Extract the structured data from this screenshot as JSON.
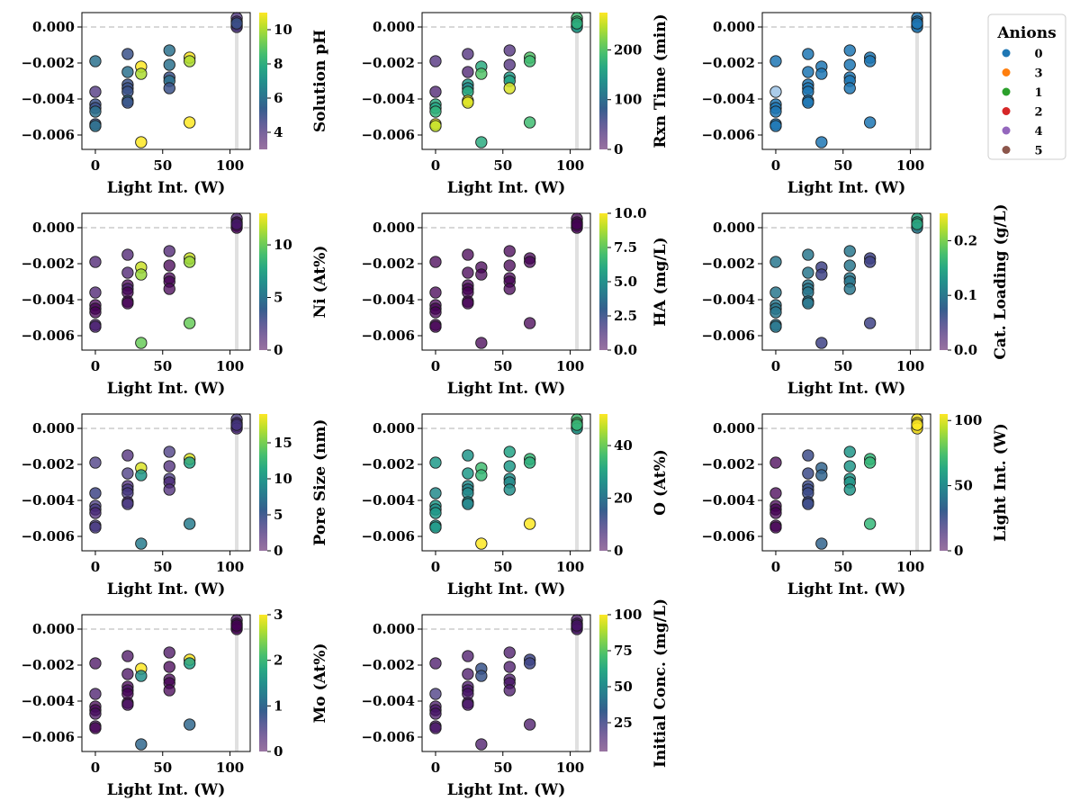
{
  "chart_data": {
    "type": "scatter",
    "grid": false,
    "shared_x": {
      "label": "Light Int. (W)",
      "lim": [
        -10,
        115
      ],
      "ticks": [
        0,
        50,
        100
      ]
    },
    "shared_y": {
      "lim": [
        -0.0068,
        0.0008
      ],
      "ticks": [
        0.0,
        -0.002,
        -0.004,
        -0.006
      ],
      "tick_labels": [
        "0.000",
        "−0.002",
        "−0.004",
        "−0.006"
      ],
      "reference_line": 0.0
    },
    "points": [
      {
        "x": 0,
        "y": -0.0019
      },
      {
        "x": 0,
        "y": -0.0036
      },
      {
        "x": 0,
        "y": -0.0043
      },
      {
        "x": 0,
        "y": -0.0045
      },
      {
        "x": 0,
        "y": -0.0047
      },
      {
        "x": 0,
        "y": -0.0054
      },
      {
        "x": 0,
        "y": -0.0055
      },
      {
        "x": 24,
        "y": -0.0015
      },
      {
        "x": 24,
        "y": -0.0025
      },
      {
        "x": 24,
        "y": -0.0032
      },
      {
        "x": 24,
        "y": -0.0034
      },
      {
        "x": 24,
        "y": -0.0036
      },
      {
        "x": 24,
        "y": -0.0041
      },
      {
        "x": 24,
        "y": -0.0042
      },
      {
        "x": 34,
        "y": -0.0022
      },
      {
        "x": 34,
        "y": -0.0026
      },
      {
        "x": 34,
        "y": -0.0064
      },
      {
        "x": 55,
        "y": -0.0013
      },
      {
        "x": 55,
        "y": -0.0021
      },
      {
        "x": 55,
        "y": -0.0028
      },
      {
        "x": 55,
        "y": -0.003
      },
      {
        "x": 55,
        "y": -0.0034
      },
      {
        "x": 70,
        "y": -0.0017
      },
      {
        "x": 70,
        "y": -0.0019
      },
      {
        "x": 70,
        "y": -0.0053
      },
      {
        "x": 105,
        "y": 0.0005
      },
      {
        "x": 105,
        "y": 0.0003
      },
      {
        "x": 105,
        "y": 0.0001
      },
      {
        "x": 105,
        "y": 0.0
      },
      {
        "x": 105,
        "y": 0.0002
      }
    ],
    "panels": [
      {
        "colorbar_label": "Solution pH",
        "clim": [
          3,
          11
        ],
        "cticks": [
          4,
          6,
          8,
          10
        ],
        "ctick_labels": [
          "4",
          "6",
          "8",
          "10"
        ],
        "colors": [
          6,
          4,
          5,
          5,
          6,
          5,
          6,
          5,
          6,
          5,
          5,
          5,
          6,
          5,
          11,
          10,
          11,
          6,
          6,
          5,
          6,
          5,
          11,
          10,
          11,
          4,
          4,
          5,
          4,
          5
        ]
      },
      {
        "colorbar_label": "Rxn Time (min)",
        "clim": [
          0,
          275
        ],
        "cticks": [
          0,
          100,
          200
        ],
        "ctick_labels": [
          "0",
          "100",
          "200"
        ],
        "colors": [
          30,
          20,
          170,
          160,
          180,
          275,
          250,
          30,
          20,
          150,
          130,
          170,
          270,
          260,
          170,
          200,
          170,
          30,
          30,
          150,
          160,
          260,
          200,
          190,
          190,
          190,
          190,
          160,
          150,
          175
        ]
      },
      {
        "colorbar_label": "",
        "categorical": true,
        "colors": [
          0,
          0,
          0,
          0,
          0,
          0,
          0,
          0,
          0,
          0,
          0,
          0,
          0,
          0,
          0,
          0,
          0,
          0,
          0,
          0,
          0,
          0,
          0,
          0,
          0,
          0,
          0,
          0,
          0,
          0
        ]
      },
      {
        "colorbar_label": "Ni (At%)",
        "clim": [
          0,
          13
        ],
        "cticks": [
          0,
          5,
          10
        ],
        "ctick_labels": [
          "0",
          "5",
          "10"
        ],
        "colors": [
          1,
          1,
          0,
          0,
          0,
          1,
          1,
          1,
          1,
          0,
          1,
          0,
          0,
          0,
          12,
          11,
          10,
          1,
          0,
          0,
          0,
          0,
          12,
          11,
          10,
          1,
          0,
          0,
          0,
          1
        ]
      },
      {
        "colorbar_label": "HA (mg/L)",
        "clim": [
          0,
          10
        ],
        "cticks": [
          0,
          2.5,
          5,
          7.5,
          10
        ],
        "ctick_labels": [
          "0.0",
          "2.5",
          "5.0",
          "7.5",
          "10.0"
        ],
        "colors": [
          0,
          0,
          0,
          0,
          0,
          0,
          0,
          0,
          0,
          0,
          0,
          0,
          0,
          0,
          0,
          0,
          0,
          0,
          0,
          0,
          0,
          0,
          0,
          0,
          0,
          0,
          0,
          0,
          0,
          0
        ]
      },
      {
        "colorbar_label": "Cat. Loading (g/L)",
        "clim": [
          0,
          0.25
        ],
        "cticks": [
          0,
          0.1,
          0.2
        ],
        "ctick_labels": [
          "0.0",
          "0.1",
          "0.2"
        ],
        "colors": [
          0.1,
          0.1,
          0.1,
          0.1,
          0.1,
          0.1,
          0.1,
          0.1,
          0.1,
          0.1,
          0.1,
          0.1,
          0.1,
          0.1,
          0.05,
          0.05,
          0.05,
          0.1,
          0.1,
          0.1,
          0.1,
          0.1,
          0.05,
          0.05,
          0.05,
          0.15,
          0.15,
          0.2,
          0.1,
          0.15
        ]
      },
      {
        "colorbar_label": "Pore Size (nm)",
        "clim": [
          0,
          19
        ],
        "cticks": [
          0,
          5,
          10,
          15
        ],
        "ctick_labels": [
          "0",
          "5",
          "10",
          "15"
        ],
        "colors": [
          3,
          4,
          3,
          3,
          2,
          3,
          3,
          2,
          3,
          2,
          3,
          3,
          2,
          3,
          18,
          10,
          8,
          3,
          2,
          3,
          2,
          2,
          18,
          11,
          8,
          3,
          2,
          3,
          2,
          3
        ]
      },
      {
        "colorbar_label": "O (At%)",
        "clim": [
          0,
          52
        ],
        "cticks": [
          0,
          20,
          40
        ],
        "ctick_labels": [
          "0",
          "20",
          "40"
        ],
        "colors": [
          28,
          25,
          28,
          26,
          28,
          27,
          28,
          27,
          28,
          25,
          24,
          25,
          26,
          24,
          36,
          35,
          52,
          30,
          28,
          26,
          25,
          26,
          35,
          33,
          52,
          36,
          38,
          40,
          27,
          35
        ]
      },
      {
        "colorbar_label": "Light Int. (W)",
        "clim": [
          0,
          105
        ],
        "cticks": [
          0,
          50,
          100
        ],
        "ctick_labels": [
          "0",
          "50",
          "100"
        ],
        "colors": [
          0,
          0,
          0,
          0,
          0,
          0,
          0,
          24,
          24,
          24,
          24,
          24,
          24,
          24,
          34,
          34,
          34,
          55,
          55,
          55,
          55,
          55,
          70,
          70,
          70,
          105,
          105,
          105,
          105,
          105
        ]
      },
      {
        "colorbar_label": "Mo (At%)",
        "clim": [
          0,
          3
        ],
        "cticks": [
          0,
          1,
          2,
          3
        ],
        "ctick_labels": [
          "0",
          "1",
          "2",
          "3"
        ],
        "colors": [
          0.1,
          0.2,
          0,
          0,
          0.1,
          0.1,
          0,
          0.1,
          0.1,
          0,
          0.1,
          0,
          0,
          0.1,
          3,
          1.5,
          1,
          0.1,
          0,
          0,
          0,
          0,
          3,
          1.7,
          1,
          0.1,
          0,
          0,
          0,
          0
        ]
      },
      {
        "colorbar_label": "Initial Conc. (mg/L)",
        "clim": [
          5,
          100
        ],
        "cticks": [
          25,
          50,
          75,
          100
        ],
        "ctick_labels": [
          "25",
          "50",
          "75",
          "100"
        ],
        "colors": [
          10,
          20,
          10,
          10,
          10,
          10,
          10,
          10,
          10,
          10,
          10,
          10,
          10,
          10,
          30,
          30,
          10,
          10,
          10,
          10,
          10,
          10,
          25,
          25,
          10,
          10,
          10,
          10,
          10,
          10
        ]
      }
    ],
    "legend": {
      "title": "Anions",
      "placement": "right of top-right panel",
      "entries": [
        {
          "label": "0",
          "color": "#1f77b4"
        },
        {
          "label": "3",
          "color": "#ff7f0e"
        },
        {
          "label": "1",
          "color": "#2ca02c"
        },
        {
          "label": "2",
          "color": "#d62728"
        },
        {
          "label": "4",
          "color": "#9467bd"
        },
        {
          "label": "5",
          "color": "#8c564b"
        }
      ]
    },
    "colormap": "viridis"
  }
}
